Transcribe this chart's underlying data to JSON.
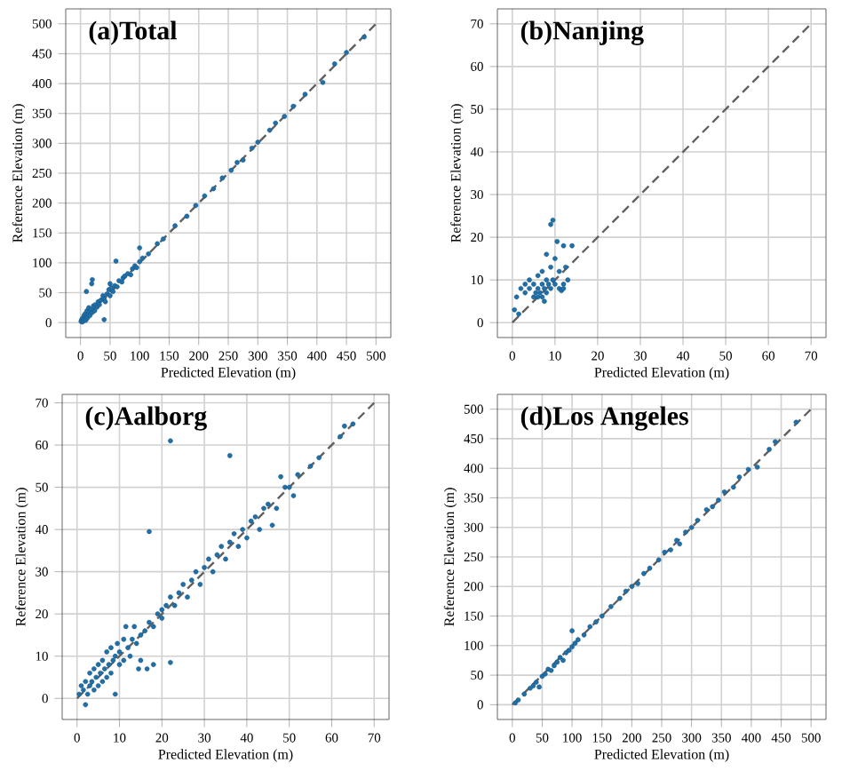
{
  "chart_data": [
    {
      "type": "scatter",
      "title": "(a)Total",
      "xlabel": "Predicted Elevation (m)",
      "ylabel": "Reference Elevation (m)",
      "xlim": [
        -25,
        525
      ],
      "ylim": [
        -25,
        525
      ],
      "xticks": [
        0,
        50,
        100,
        150,
        200,
        250,
        300,
        350,
        400,
        450,
        500
      ],
      "yticks": [
        0,
        50,
        100,
        150,
        200,
        250,
        300,
        350,
        400,
        450,
        500
      ],
      "grid": true,
      "series": [
        {
          "color": "#1f6fa8",
          "x": [
            1,
            2,
            3,
            4,
            5,
            6,
            7,
            8,
            9,
            10,
            11,
            12,
            13,
            14,
            15,
            16,
            18,
            20,
            20,
            19,
            10,
            22,
            24,
            25,
            28,
            30,
            32,
            35,
            38,
            40,
            40,
            42,
            45,
            48,
            50,
            50,
            52,
            55,
            58,
            60,
            62,
            65,
            70,
            72,
            75,
            80,
            85,
            88,
            92,
            95,
            100,
            100,
            105,
            115,
            130,
            140,
            160,
            180,
            195,
            210,
            225,
            240,
            255,
            265,
            275,
            290,
            300,
            320,
            330,
            345,
            360,
            380,
            410,
            430,
            450,
            480
          ],
          "values": [
            2,
            5,
            1,
            8,
            3,
            12,
            6,
            15,
            4,
            10,
            20,
            8,
            13,
            25,
            18,
            12,
            22,
            17,
            72,
            65,
            52,
            28,
            20,
            30,
            26,
            35,
            30,
            38,
            45,
            5,
            40,
            35,
            48,
            55,
            45,
            65,
            58,
            52,
            62,
            103,
            60,
            70,
            68,
            75,
            78,
            82,
            80,
            90,
            95,
            92,
            125,
            102,
            108,
            115,
            132,
            140,
            162,
            178,
            196,
            212,
            224,
            242,
            255,
            268,
            272,
            292,
            302,
            322,
            334,
            345,
            362,
            382,
            402,
            433,
            452,
            478
          ]
        },
        {
          "type": "line",
          "line_style": "dashed",
          "color": "#606060",
          "x": [
            0,
            500
          ],
          "values": [
            0,
            500
          ]
        }
      ]
    },
    {
      "type": "scatter",
      "title": "(b)Nanjing",
      "xlabel": "Predicted Elevation (m)",
      "ylabel": "Reference Elevation (m)",
      "xlim": [
        -3.5,
        73.5
      ],
      "ylim": [
        -3.5,
        73.5
      ],
      "xticks": [
        0,
        10,
        20,
        30,
        40,
        50,
        60,
        70
      ],
      "yticks": [
        0,
        10,
        20,
        30,
        40,
        50,
        60,
        70
      ],
      "grid": true,
      "series": [
        {
          "color": "#1f6fa8",
          "x": [
            0.5,
            1,
            1.5,
            2,
            3,
            3,
            4,
            4,
            5,
            5,
            5.5,
            6,
            6,
            6,
            6.5,
            7,
            7,
            7,
            7.5,
            7.5,
            8,
            8,
            8,
            8.5,
            9,
            9.5,
            9,
            9,
            9.5,
            10,
            10,
            10.5,
            11,
            11,
            11.5,
            12,
            12,
            12.5,
            13,
            14,
            12
          ],
          "values": [
            3,
            6,
            2,
            8,
            9,
            7,
            8,
            10,
            6,
            9,
            7,
            6,
            8,
            11,
            7,
            9,
            6,
            12,
            8,
            5,
            10,
            7,
            16,
            9,
            23,
            24,
            13,
            8,
            10,
            15,
            9,
            19,
            8,
            12,
            7.5,
            9,
            18,
            13,
            10,
            18,
            8
          ]
        },
        {
          "type": "line",
          "line_style": "dashed",
          "color": "#606060",
          "x": [
            0,
            70
          ],
          "values": [
            0,
            70
          ]
        }
      ]
    },
    {
      "type": "scatter",
      "title": "(c)Aalborg",
      "xlabel": "Predicted Elevation (m)",
      "ylabel": "Reference Elevation (m)",
      "xlim": [
        -3.5,
        73.5
      ],
      "ylim": [
        -5,
        72
      ],
      "xticks": [
        0,
        10,
        20,
        30,
        40,
        50,
        60,
        70
      ],
      "yticks": [
        0,
        10,
        20,
        30,
        40,
        50,
        60,
        70
      ],
      "grid": true,
      "series": [
        {
          "color": "#1f6fa8",
          "x": [
            0.5,
            1,
            1.5,
            2,
            2,
            2.5,
            3,
            3,
            3.5,
            4,
            4,
            4.5,
            5,
            5,
            5.5,
            6,
            6,
            6.5,
            7,
            7,
            7.5,
            8,
            8,
            8.5,
            9,
            9,
            9.5,
            10,
            10,
            11,
            11,
            11.5,
            12,
            12.5,
            13,
            13.5,
            14,
            14.5,
            15,
            15,
            16,
            16.5,
            17,
            17,
            18,
            18,
            19,
            20,
            20,
            21,
            22,
            22,
            22,
            23,
            24,
            25,
            26,
            27,
            28,
            29,
            30,
            31,
            32,
            33,
            34,
            35,
            36,
            36,
            37,
            38,
            39,
            40,
            41,
            42,
            43,
            44,
            45,
            46,
            47,
            48,
            49,
            50,
            51,
            52,
            55,
            57,
            62,
            63,
            65
          ],
          "values": [
            1,
            3,
            2,
            -1.5,
            4,
            1,
            3,
            6,
            4,
            2,
            7,
            5,
            3,
            8,
            6,
            4,
            9,
            7,
            5,
            11,
            8,
            6,
            12,
            9,
            1,
            10,
            13,
            8,
            11,
            9,
            14,
            17,
            12,
            10,
            14,
            17,
            13,
            7,
            15,
            9,
            16,
            7,
            18,
            39.5,
            17,
            8,
            20,
            21,
            19,
            22,
            8.5,
            61,
            24,
            22,
            25,
            27,
            24,
            28,
            30,
            27,
            31,
            33,
            30,
            34,
            36,
            33,
            57.5,
            37,
            39,
            36,
            40,
            38,
            42,
            43,
            40,
            45,
            46,
            41,
            45,
            52.5,
            50,
            50,
            48,
            53,
            55,
            57,
            62,
            64.5,
            65
          ]
        },
        {
          "type": "line",
          "line_style": "dashed",
          "color": "#606060",
          "x": [
            0,
            70
          ],
          "values": [
            0,
            70
          ]
        }
      ]
    },
    {
      "type": "scatter",
      "title": "(d)Los Angeles",
      "xlabel": "Predicted Elevation (m)",
      "ylabel": "Reference Elevation (m)",
      "xlim": [
        -25,
        525
      ],
      "ylim": [
        -25,
        525
      ],
      "xticks": [
        0,
        50,
        100,
        150,
        200,
        250,
        300,
        350,
        400,
        450,
        500
      ],
      "yticks": [
        0,
        50,
        100,
        150,
        200,
        250,
        300,
        350,
        400,
        450,
        500
      ],
      "grid": true,
      "series": [
        {
          "color": "#1f6fa8",
          "x": [
            5,
            10,
            20,
            30,
            35,
            40,
            45,
            50,
            55,
            60,
            65,
            70,
            75,
            80,
            85,
            90,
            95,
            100,
            100,
            105,
            110,
            120,
            130,
            140,
            150,
            165,
            180,
            190,
            200,
            210,
            220,
            230,
            245,
            255,
            265,
            275,
            280,
            290,
            300,
            310,
            325,
            335,
            345,
            355,
            370,
            380,
            395,
            410,
            430,
            440,
            475
          ],
          "values": [
            3,
            8,
            18,
            28,
            32,
            38,
            30,
            48,
            52,
            60,
            58,
            66,
            72,
            80,
            75,
            88,
            92,
            125,
            98,
            104,
            110,
            118,
            132,
            140,
            150,
            166,
            180,
            192,
            200,
            205,
            222,
            231,
            245,
            258,
            262,
            278,
            272,
            292,
            300,
            312,
            330,
            335,
            346,
            360,
            368,
            385,
            398,
            402,
            432,
            445,
            478
          ]
        },
        {
          "type": "line",
          "line_style": "dashed",
          "color": "#606060",
          "x": [
            0,
            500
          ],
          "values": [
            0,
            500
          ]
        }
      ]
    }
  ]
}
